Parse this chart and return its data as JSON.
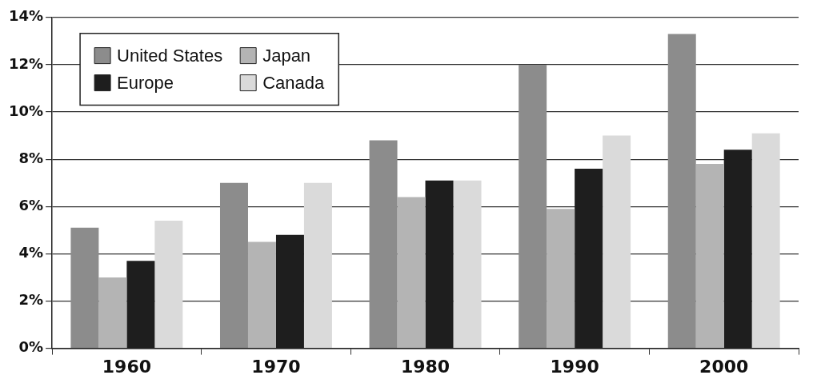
{
  "chart_data": {
    "type": "bar",
    "categories": [
      "1960",
      "1970",
      "1980",
      "1990",
      "2000"
    ],
    "series": [
      {
        "name": "United States",
        "color": "#8c8c8c",
        "values": [
          5.1,
          7.0,
          8.8,
          12.0,
          13.3
        ]
      },
      {
        "name": "Japan",
        "color": "#b4b4b4",
        "values": [
          3.0,
          4.5,
          6.4,
          5.9,
          7.8
        ]
      },
      {
        "name": "Europe",
        "color": "#1e1e1e",
        "values": [
          3.7,
          4.8,
          7.1,
          7.6,
          8.4
        ]
      },
      {
        "name": "Canada",
        "color": "#dadada",
        "values": [
          5.4,
          7.0,
          7.1,
          9.0,
          9.1
        ]
      }
    ],
    "ylim": [
      0,
      14
    ],
    "yticks": [
      {
        "value": 0,
        "label": "0%"
      },
      {
        "value": 2,
        "label": "2%"
      },
      {
        "value": 4,
        "label": "4%"
      },
      {
        "value": 6,
        "label": "6%"
      },
      {
        "value": 8,
        "label": "8%"
      },
      {
        "value": 10,
        "label": "10%"
      },
      {
        "value": 12,
        "label": "12%"
      },
      {
        "value": 14,
        "label": "14%"
      }
    ],
    "grid": "y",
    "legend": "top left"
  }
}
